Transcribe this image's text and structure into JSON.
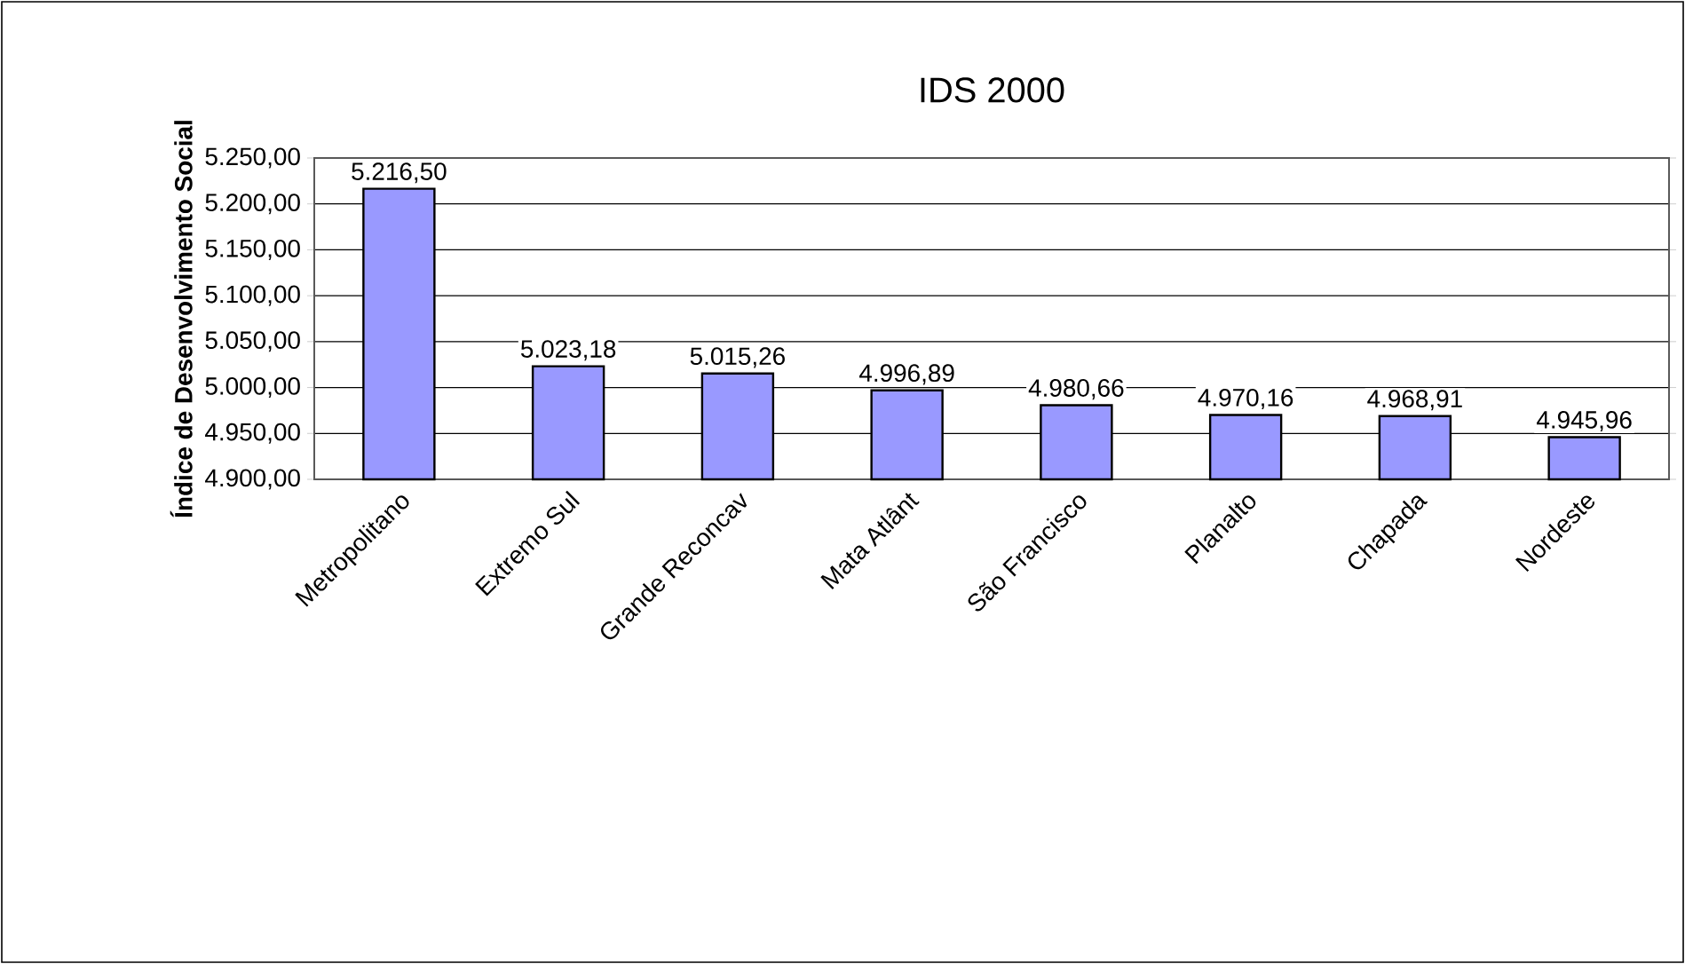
{
  "chart_data": {
    "type": "bar",
    "title": "IDS 2000",
    "ylabel": "Índice de Desenvolvimento Social",
    "categories": [
      "Metropolitano",
      "Extremo Sul",
      "Grande Reconcav",
      "Mata Atlânt",
      "São Francisco",
      "Planalto",
      "Chapada",
      "Nordeste"
    ],
    "values": [
      5216.5,
      5023.18,
      5015.26,
      4996.89,
      4980.66,
      4970.16,
      4968.91,
      4945.96
    ],
    "value_labels": [
      "5.216,50",
      "5.023,18",
      "5.015,26",
      "4.996,89",
      "4.980,66",
      "4.970,16",
      "4.968,91",
      "4.945,96"
    ],
    "color": "#9999ff",
    "ylim": [
      4900,
      5250
    ],
    "yticks": [
      {
        "value": 4900,
        "label": "4.900,00"
      },
      {
        "value": 4950,
        "label": "4.950,00"
      },
      {
        "value": 5000,
        "label": "5.000,00"
      },
      {
        "value": 5050,
        "label": "5.050,00"
      },
      {
        "value": 5100,
        "label": "5.100,00"
      },
      {
        "value": 5150,
        "label": "5.150,00"
      },
      {
        "value": 5200,
        "label": "5.200,00"
      },
      {
        "value": 5250,
        "label": "5.250,00"
      }
    ],
    "grid": "y"
  }
}
